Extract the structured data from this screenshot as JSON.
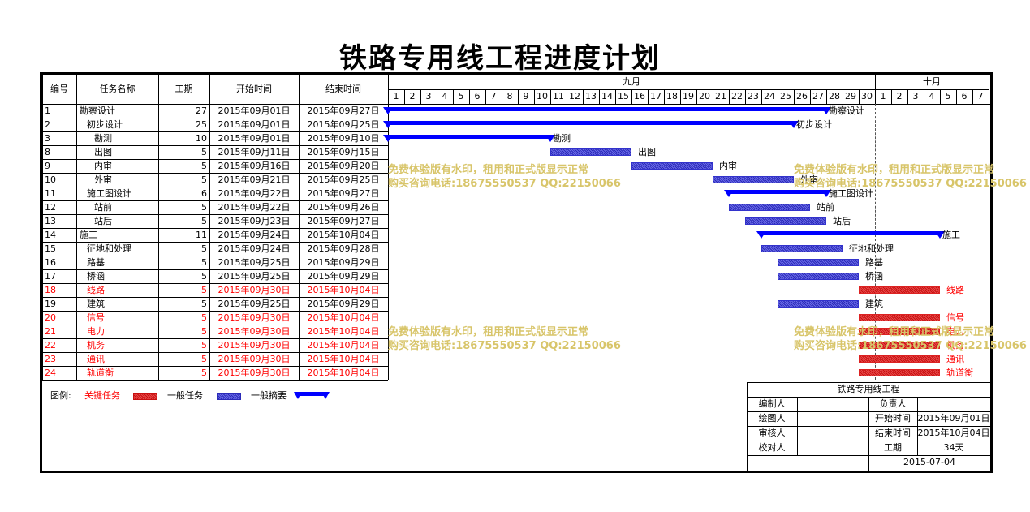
{
  "title": "铁路专用线工程进度计划",
  "headers": {
    "id": "编号",
    "name": "任务名称",
    "dur": "工期",
    "start": "开始时间",
    "end": "结束时间"
  },
  "months": [
    {
      "label": "九月",
      "days": 30
    },
    {
      "label": "十月",
      "days": 7
    }
  ],
  "tasks": [
    {
      "id": "1",
      "name": "勘察设计",
      "indent": 0,
      "dur": "27",
      "start": "2015年09月01日",
      "end": "2015年09月27日",
      "from": 1,
      "to": 27,
      "type": "summary",
      "critical": false
    },
    {
      "id": "2",
      "name": "初步设计",
      "indent": 1,
      "dur": "25",
      "start": "2015年09月01日",
      "end": "2015年09月25日",
      "from": 1,
      "to": 25,
      "type": "summary",
      "critical": false
    },
    {
      "id": "3",
      "name": "勘测",
      "indent": 2,
      "dur": "10",
      "start": "2015年09月01日",
      "end": "2015年09月10日",
      "from": 1,
      "to": 10,
      "type": "summary",
      "critical": false
    },
    {
      "id": "8",
      "name": "出图",
      "indent": 2,
      "dur": "5",
      "start": "2015年09月11日",
      "end": "2015年09月15日",
      "from": 11,
      "to": 15,
      "type": "task",
      "critical": false
    },
    {
      "id": "9",
      "name": "内审",
      "indent": 2,
      "dur": "5",
      "start": "2015年09月16日",
      "end": "2015年09月20日",
      "from": 16,
      "to": 20,
      "type": "task",
      "critical": false
    },
    {
      "id": "10",
      "name": "外审",
      "indent": 2,
      "dur": "5",
      "start": "2015年09月21日",
      "end": "2015年09月25日",
      "from": 21,
      "to": 25,
      "type": "task",
      "critical": false
    },
    {
      "id": "11",
      "name": "施工图设计",
      "indent": 1,
      "dur": "6",
      "start": "2015年09月22日",
      "end": "2015年09月27日",
      "from": 22,
      "to": 27,
      "type": "summary",
      "critical": false
    },
    {
      "id": "12",
      "name": "站前",
      "indent": 2,
      "dur": "5",
      "start": "2015年09月22日",
      "end": "2015年09月26日",
      "from": 22,
      "to": 26,
      "type": "task",
      "critical": false
    },
    {
      "id": "13",
      "name": "站后",
      "indent": 2,
      "dur": "5",
      "start": "2015年09月23日",
      "end": "2015年09月27日",
      "from": 23,
      "to": 27,
      "type": "task",
      "critical": false
    },
    {
      "id": "14",
      "name": "施工",
      "indent": 0,
      "dur": "11",
      "start": "2015年09月24日",
      "end": "2015年10月04日",
      "from": 24,
      "to": 34,
      "type": "summary",
      "critical": false
    },
    {
      "id": "15",
      "name": "征地和处理",
      "indent": 1,
      "dur": "5",
      "start": "2015年09月24日",
      "end": "2015年09月28日",
      "from": 24,
      "to": 28,
      "type": "task",
      "critical": false
    },
    {
      "id": "16",
      "name": "路基",
      "indent": 1,
      "dur": "5",
      "start": "2015年09月25日",
      "end": "2015年09月29日",
      "from": 25,
      "to": 29,
      "type": "task",
      "critical": false
    },
    {
      "id": "17",
      "name": "桥涵",
      "indent": 1,
      "dur": "5",
      "start": "2015年09月25日",
      "end": "2015年09月29日",
      "from": 25,
      "to": 29,
      "type": "task",
      "critical": false
    },
    {
      "id": "18",
      "name": "线路",
      "indent": 1,
      "dur": "5",
      "start": "2015年09月30日",
      "end": "2015年10月04日",
      "from": 30,
      "to": 34,
      "type": "task",
      "critical": true
    },
    {
      "id": "19",
      "name": "建筑",
      "indent": 1,
      "dur": "5",
      "start": "2015年09月25日",
      "end": "2015年09月29日",
      "from": 25,
      "to": 29,
      "type": "task",
      "critical": false
    },
    {
      "id": "20",
      "name": "信号",
      "indent": 1,
      "dur": "5",
      "start": "2015年09月30日",
      "end": "2015年10月04日",
      "from": 30,
      "to": 34,
      "type": "task",
      "critical": true
    },
    {
      "id": "21",
      "name": "电力",
      "indent": 1,
      "dur": "5",
      "start": "2015年09月30日",
      "end": "2015年10月04日",
      "from": 30,
      "to": 34,
      "type": "task",
      "critical": true
    },
    {
      "id": "22",
      "name": "机务",
      "indent": 1,
      "dur": "5",
      "start": "2015年09月30日",
      "end": "2015年10月04日",
      "from": 30,
      "to": 34,
      "type": "task",
      "critical": true
    },
    {
      "id": "23",
      "name": "通讯",
      "indent": 1,
      "dur": "5",
      "start": "2015年09月30日",
      "end": "2015年10月04日",
      "from": 30,
      "to": 34,
      "type": "task",
      "critical": true
    },
    {
      "id": "24",
      "name": "轨道衡",
      "indent": 1,
      "dur": "5",
      "start": "2015年09月30日",
      "end": "2015年10月04日",
      "from": 30,
      "to": 34,
      "type": "task",
      "critical": true
    }
  ],
  "legend": {
    "label": "图例:",
    "critical": "关键任务",
    "normal": "一般任务",
    "summary": "一般摘要"
  },
  "watermark": {
    "line1": "免费体验版有水印，租用和正式版显示正常",
    "line2": "购买咨询电话:18675550537 QQ:22150066"
  },
  "info": {
    "project": "铁路专用线工程",
    "compiler_label": "编制人",
    "compiler": "",
    "owner_label": "负责人",
    "owner": "",
    "drawer_label": "绘图人",
    "drawer": "",
    "start_label": "开始时间",
    "start": "2015年09月01日",
    "reviewer_label": "审核人",
    "reviewer": "",
    "end_label": "结束时间",
    "end": "2015年10月04日",
    "checker_label": "校对人",
    "checker": "",
    "duration_label": "工期",
    "duration": "34天",
    "date": "2015-07-04"
  },
  "colors": {
    "normal": "#000000",
    "critical": "#ff0000",
    "summary_bar": "#0000ff",
    "task_bar": "#3333cc",
    "critical_bar": "#dd2222"
  }
}
